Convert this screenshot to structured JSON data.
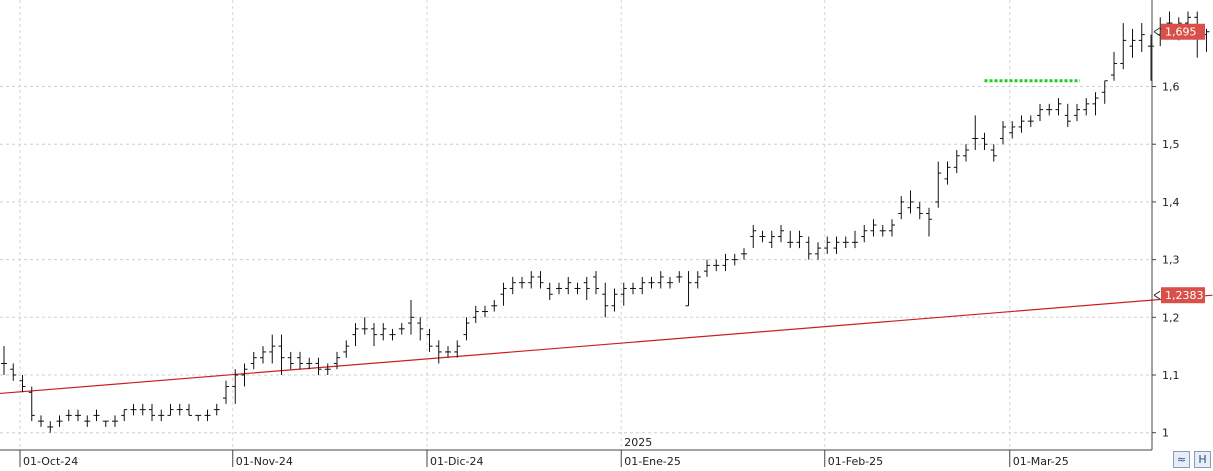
{
  "chart_data": {
    "type": "ohlc",
    "ylim": [
      0.97,
      1.75
    ],
    "yticks": [
      "1",
      "1,1",
      "1,2",
      "1,3",
      "1,4",
      "1,5",
      "1,6"
    ],
    "ytick_values": [
      1.0,
      1.1,
      1.2,
      1.3,
      1.4,
      1.5,
      1.6
    ],
    "xticks": [
      {
        "label": "01-Oct-24",
        "index": 0
      },
      {
        "label": "01-Nov-24",
        "index": 23
      },
      {
        "label": "01-Dic-24",
        "index": 44
      },
      {
        "label": "01-Ene-25",
        "index": 65
      },
      {
        "label": "01-Feb-25",
        "index": 87
      },
      {
        "label": "01-Mar-25",
        "index": 107
      }
    ],
    "year_marker": {
      "label": "2025",
      "index": 65
    },
    "bars": [
      [
        1.12,
        1.15,
        1.1,
        1.12
      ],
      [
        1.11,
        1.12,
        1.09,
        1.1
      ],
      [
        1.09,
        1.1,
        1.07,
        1.08
      ],
      [
        1.07,
        1.08,
        1.02,
        1.03
      ],
      [
        1.02,
        1.03,
        1.01,
        1.02
      ],
      [
        1.01,
        1.02,
        1.0,
        1.01
      ],
      [
        1.02,
        1.03,
        1.01,
        1.02
      ],
      [
        1.03,
        1.04,
        1.02,
        1.03
      ],
      [
        1.03,
        1.04,
        1.02,
        1.03
      ],
      [
        1.02,
        1.03,
        1.01,
        1.02
      ],
      [
        1.03,
        1.04,
        1.02,
        1.03
      ],
      [
        1.02,
        1.02,
        1.01,
        1.02
      ],
      [
        1.02,
        1.03,
        1.01,
        1.02
      ],
      [
        1.03,
        1.04,
        1.02,
        1.04
      ],
      [
        1.04,
        1.05,
        1.03,
        1.04
      ],
      [
        1.04,
        1.05,
        1.03,
        1.04
      ],
      [
        1.04,
        1.05,
        1.02,
        1.03
      ],
      [
        1.03,
        1.04,
        1.02,
        1.03
      ],
      [
        1.03,
        1.05,
        1.03,
        1.04
      ],
      [
        1.04,
        1.05,
        1.03,
        1.04
      ],
      [
        1.04,
        1.05,
        1.03,
        1.03
      ],
      [
        1.03,
        1.03,
        1.02,
        1.03
      ],
      [
        1.03,
        1.04,
        1.02,
        1.03
      ],
      [
        1.04,
        1.05,
        1.03,
        1.04
      ],
      [
        1.06,
        1.09,
        1.05,
        1.08
      ],
      [
        1.08,
        1.11,
        1.05,
        1.1
      ],
      [
        1.1,
        1.12,
        1.08,
        1.11
      ],
      [
        1.12,
        1.14,
        1.11,
        1.13
      ],
      [
        1.13,
        1.15,
        1.12,
        1.14
      ],
      [
        1.14,
        1.17,
        1.12,
        1.15
      ],
      [
        1.15,
        1.17,
        1.1,
        1.13
      ],
      [
        1.13,
        1.14,
        1.11,
        1.12
      ],
      [
        1.13,
        1.14,
        1.11,
        1.12
      ],
      [
        1.12,
        1.13,
        1.11,
        1.12
      ],
      [
        1.12,
        1.13,
        1.1,
        1.11
      ],
      [
        1.11,
        1.12,
        1.1,
        1.11
      ],
      [
        1.12,
        1.14,
        1.11,
        1.13
      ],
      [
        1.14,
        1.16,
        1.13,
        1.15
      ],
      [
        1.17,
        1.19,
        1.15,
        1.18
      ],
      [
        1.18,
        1.2,
        1.17,
        1.18
      ],
      [
        1.18,
        1.19,
        1.15,
        1.17
      ],
      [
        1.17,
        1.19,
        1.16,
        1.18
      ],
      [
        1.17,
        1.18,
        1.16,
        1.17
      ],
      [
        1.18,
        1.19,
        1.17,
        1.18
      ],
      [
        1.19,
        1.23,
        1.17,
        1.2
      ],
      [
        1.19,
        1.2,
        1.16,
        1.18
      ],
      [
        1.17,
        1.18,
        1.14,
        1.15
      ],
      [
        1.15,
        1.16,
        1.12,
        1.14
      ],
      [
        1.14,
        1.15,
        1.13,
        1.14
      ],
      [
        1.14,
        1.16,
        1.13,
        1.15
      ],
      [
        1.17,
        1.2,
        1.16,
        1.19
      ],
      [
        1.2,
        1.22,
        1.19,
        1.21
      ],
      [
        1.21,
        1.22,
        1.2,
        1.21
      ],
      [
        1.22,
        1.23,
        1.21,
        1.22
      ],
      [
        1.24,
        1.26,
        1.22,
        1.25
      ],
      [
        1.25,
        1.27,
        1.24,
        1.26
      ],
      [
        1.26,
        1.27,
        1.25,
        1.26
      ],
      [
        1.26,
        1.28,
        1.25,
        1.27
      ],
      [
        1.27,
        1.28,
        1.25,
        1.26
      ],
      [
        1.25,
        1.26,
        1.23,
        1.24
      ],
      [
        1.25,
        1.26,
        1.24,
        1.25
      ],
      [
        1.25,
        1.27,
        1.24,
        1.26
      ],
      [
        1.25,
        1.26,
        1.24,
        1.25
      ],
      [
        1.26,
        1.27,
        1.23,
        1.25
      ],
      [
        1.27,
        1.28,
        1.24,
        1.25
      ],
      [
        1.24,
        1.26,
        1.2,
        1.22
      ],
      [
        1.22,
        1.25,
        1.21,
        1.24
      ],
      [
        1.24,
        1.26,
        1.22,
        1.25
      ],
      [
        1.25,
        1.26,
        1.24,
        1.25
      ],
      [
        1.25,
        1.27,
        1.24,
        1.26
      ],
      [
        1.26,
        1.27,
        1.25,
        1.26
      ],
      [
        1.26,
        1.28,
        1.25,
        1.27
      ],
      [
        1.26,
        1.27,
        1.25,
        1.26
      ],
      [
        1.27,
        1.28,
        1.26,
        1.27
      ],
      [
        1.22,
        1.28,
        1.22,
        1.26
      ],
      [
        1.26,
        1.28,
        1.25,
        1.27
      ],
      [
        1.28,
        1.3,
        1.27,
        1.29
      ],
      [
        1.29,
        1.3,
        1.28,
        1.29
      ],
      [
        1.29,
        1.31,
        1.28,
        1.3
      ],
      [
        1.3,
        1.31,
        1.29,
        1.3
      ],
      [
        1.31,
        1.32,
        1.3,
        1.31
      ],
      [
        1.34,
        1.36,
        1.32,
        1.35
      ],
      [
        1.34,
        1.35,
        1.33,
        1.34
      ],
      [
        1.33,
        1.35,
        1.32,
        1.34
      ],
      [
        1.34,
        1.36,
        1.33,
        1.35
      ],
      [
        1.33,
        1.35,
        1.32,
        1.33
      ],
      [
        1.33,
        1.35,
        1.32,
        1.34
      ],
      [
        1.33,
        1.34,
        1.3,
        1.31
      ],
      [
        1.31,
        1.33,
        1.3,
        1.32
      ],
      [
        1.32,
        1.34,
        1.31,
        1.33
      ],
      [
        1.32,
        1.34,
        1.31,
        1.33
      ],
      [
        1.33,
        1.34,
        1.32,
        1.33
      ],
      [
        1.33,
        1.35,
        1.32,
        1.33
      ],
      [
        1.34,
        1.36,
        1.33,
        1.35
      ],
      [
        1.35,
        1.37,
        1.34,
        1.36
      ],
      [
        1.35,
        1.36,
        1.34,
        1.35
      ],
      [
        1.35,
        1.37,
        1.34,
        1.36
      ],
      [
        1.38,
        1.41,
        1.37,
        1.4
      ],
      [
        1.39,
        1.42,
        1.38,
        1.4
      ],
      [
        1.39,
        1.4,
        1.37,
        1.38
      ],
      [
        1.38,
        1.39,
        1.34,
        1.37
      ],
      [
        1.4,
        1.47,
        1.39,
        1.45
      ],
      [
        1.44,
        1.47,
        1.43,
        1.46
      ],
      [
        1.46,
        1.49,
        1.45,
        1.48
      ],
      [
        1.48,
        1.5,
        1.47,
        1.49
      ],
      [
        1.51,
        1.55,
        1.49,
        1.51
      ],
      [
        1.51,
        1.52,
        1.49,
        1.5
      ],
      [
        1.49,
        1.5,
        1.47,
        1.48
      ],
      [
        1.51,
        1.54,
        1.5,
        1.53
      ],
      [
        1.52,
        1.54,
        1.51,
        1.53
      ],
      [
        1.53,
        1.55,
        1.52,
        1.54
      ],
      [
        1.54,
        1.55,
        1.53,
        1.54
      ],
      [
        1.55,
        1.57,
        1.54,
        1.56
      ],
      [
        1.56,
        1.57,
        1.55,
        1.56
      ],
      [
        1.56,
        1.58,
        1.55,
        1.57
      ],
      [
        1.55,
        1.57,
        1.53,
        1.54
      ],
      [
        1.55,
        1.57,
        1.54,
        1.56
      ],
      [
        1.56,
        1.58,
        1.55,
        1.57
      ],
      [
        1.57,
        1.59,
        1.55,
        1.58
      ],
      [
        1.59,
        1.61,
        1.57,
        1.61
      ],
      [
        1.62,
        1.66,
        1.61,
        1.64
      ],
      [
        1.64,
        1.71,
        1.63,
        1.68
      ],
      [
        1.67,
        1.7,
        1.65,
        1.68
      ],
      [
        1.68,
        1.71,
        1.66,
        1.69
      ],
      [
        1.67,
        1.69,
        1.61,
        1.67
      ],
      [
        1.69,
        1.72,
        1.67,
        1.7
      ],
      [
        1.71,
        1.73,
        1.69,
        1.71
      ],
      [
        1.7,
        1.72,
        1.68,
        1.71
      ],
      [
        1.71,
        1.73,
        1.69,
        1.72
      ],
      [
        1.72,
        1.73,
        1.65,
        1.69
      ],
      [
        1.69,
        1.7,
        1.66,
        1.695
      ]
    ],
    "moving_average": {
      "color": "#cc1f1f",
      "start": 1.068,
      "end": 1.2383
    },
    "support_line": {
      "color": "#22cc22",
      "value": 1.61,
      "from_index": 106,
      "to_index": 116
    },
    "price_tags": [
      {
        "label": "1,695",
        "value": 1.695,
        "color": "#d9504a"
      },
      {
        "label": "1,2383",
        "value": 1.2383,
        "color": "#d9504a"
      }
    ],
    "grid": true
  },
  "controls": {
    "zoom_label": "≈",
    "save_label": "H",
    "zoom_icon": "zoom-icon",
    "save_icon": "save-icon"
  }
}
